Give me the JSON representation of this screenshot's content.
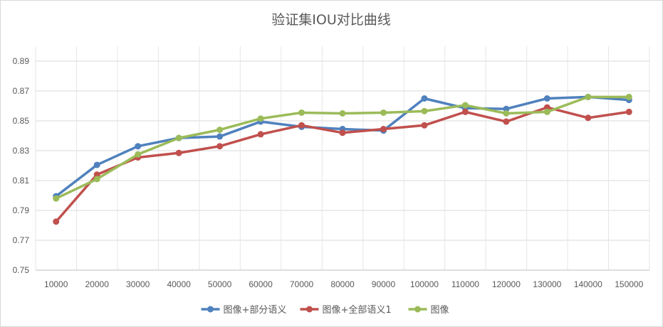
{
  "chart_data": {
    "type": "line",
    "title": "验证集IOU对比曲线",
    "xlabel": "",
    "ylabel": "",
    "categories": [
      "10000",
      "20000",
      "30000",
      "40000",
      "50000",
      "60000",
      "70000",
      "80000",
      "90000",
      "100000",
      "110000",
      "120000",
      "130000",
      "140000",
      "150000"
    ],
    "yticks": [
      "0.75",
      "0.77",
      "0.79",
      "0.81",
      "0.83",
      "0.85",
      "0.87",
      "0.89"
    ],
    "ylim": [
      0.75,
      0.9
    ],
    "grid": "horizontal",
    "legend_position": "bottom",
    "series": [
      {
        "name": "图像+部分语义",
        "color": "#4f81bd",
        "values": [
          0.7995,
          0.8205,
          0.833,
          0.8385,
          0.8395,
          0.8495,
          0.846,
          0.8445,
          0.8435,
          0.865,
          0.8585,
          0.858,
          0.865,
          0.866,
          0.864
        ]
      },
      {
        "name": "图像+全部语义1",
        "color": "#c0504d",
        "values": [
          0.7825,
          0.814,
          0.8255,
          0.8285,
          0.833,
          0.841,
          0.847,
          0.842,
          0.8445,
          0.847,
          0.856,
          0.8495,
          0.859,
          0.852,
          0.856
        ]
      },
      {
        "name": "图像",
        "color": "#9bbb59",
        "values": [
          0.798,
          0.811,
          0.8275,
          0.8385,
          0.844,
          0.8515,
          0.8555,
          0.855,
          0.8555,
          0.8565,
          0.8605,
          0.855,
          0.856,
          0.866,
          0.866
        ]
      }
    ]
  }
}
